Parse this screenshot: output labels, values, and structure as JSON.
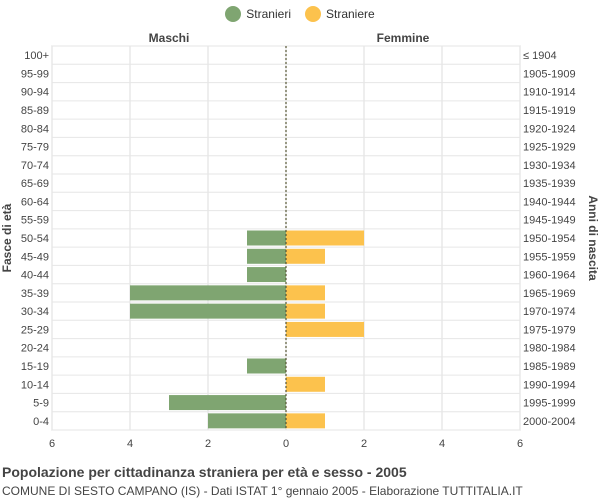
{
  "legend": {
    "stranieri": "Stranieri",
    "straniere": "Straniere"
  },
  "colors": {
    "male": "#7fa571",
    "female": "#fcc24d"
  },
  "footer": {
    "title": "Popolazione per cittadinanza straniera per età e sesso - 2005",
    "subtitle": "COMUNE DI SESTO CAMPANO (IS) - Dati ISTAT 1° gennaio 2005 - Elaborazione TUTTITALIA.IT"
  },
  "chart_data": {
    "type": "bar",
    "orientation": "horizontal",
    "side_labels": {
      "left": "Maschi",
      "right": "Femmine"
    },
    "ylabel_left": "Fasce di età",
    "ylabel_right": "Anni di nascita",
    "xlim": [
      -6,
      6
    ],
    "xticks": [
      6,
      4,
      2,
      0,
      2,
      4,
      6
    ],
    "categories": [
      "100+",
      "95-99",
      "90-94",
      "85-89",
      "80-84",
      "75-79",
      "70-74",
      "65-69",
      "60-64",
      "55-59",
      "50-54",
      "45-49",
      "40-44",
      "35-39",
      "30-34",
      "25-29",
      "20-24",
      "15-19",
      "10-14",
      "5-9",
      "0-4"
    ],
    "birth_years": [
      "≤ 1904",
      "1905-1909",
      "1910-1914",
      "1915-1919",
      "1920-1924",
      "1925-1929",
      "1930-1934",
      "1935-1939",
      "1940-1944",
      "1945-1949",
      "1950-1954",
      "1955-1959",
      "1960-1964",
      "1965-1969",
      "1970-1974",
      "1975-1979",
      "1980-1984",
      "1985-1989",
      "1990-1994",
      "1995-1999",
      "2000-2004"
    ],
    "series": [
      {
        "name": "Stranieri",
        "values": [
          0,
          0,
          0,
          0,
          0,
          0,
          0,
          0,
          0,
          0,
          1,
          1,
          1,
          4,
          4,
          0,
          0,
          1,
          0,
          3,
          2
        ]
      },
      {
        "name": "Straniere",
        "values": [
          0,
          0,
          0,
          0,
          0,
          0,
          0,
          0,
          0,
          0,
          2,
          1,
          0,
          1,
          1,
          2,
          0,
          0,
          1,
          0,
          1
        ]
      }
    ]
  }
}
